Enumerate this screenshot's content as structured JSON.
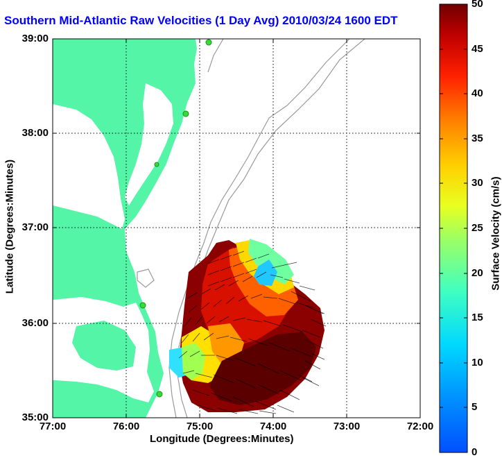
{
  "title": "Southern Mid-Atlantic Raw Velocities (1 Day Avg) 2010/03/24 1600 EDT",
  "xlabel": "Longitude (Degrees:Minutes)",
  "ylabel": "Latitude (Degrees:Minutes)",
  "colorbar_label": "Surface Velocity (cm/s)",
  "x_ticks": [
    "77:00",
    "76:00",
    "75:00",
    "74:00",
    "73:00",
    "72:00"
  ],
  "y_ticks": [
    "39:00",
    "38:00",
    "37:00",
    "36:00",
    "35:00"
  ],
  "colorbar_ticks": [
    "0",
    "5",
    "10",
    "15",
    "20",
    "25",
    "30",
    "35",
    "40",
    "45",
    "50"
  ],
  "colors": {
    "land": "#55f5a8",
    "title": "#0000ff",
    "bathymetry": "#999999",
    "station": "#33dd33",
    "arrows": "#000000"
  },
  "map_data": {
    "lon_range": [
      -77,
      -72
    ],
    "lat_range": [
      35,
      39
    ],
    "grid": true,
    "colormap": "jet",
    "color_range_cm_s": [
      0,
      50
    ],
    "coastal_stations": 5
  }
}
